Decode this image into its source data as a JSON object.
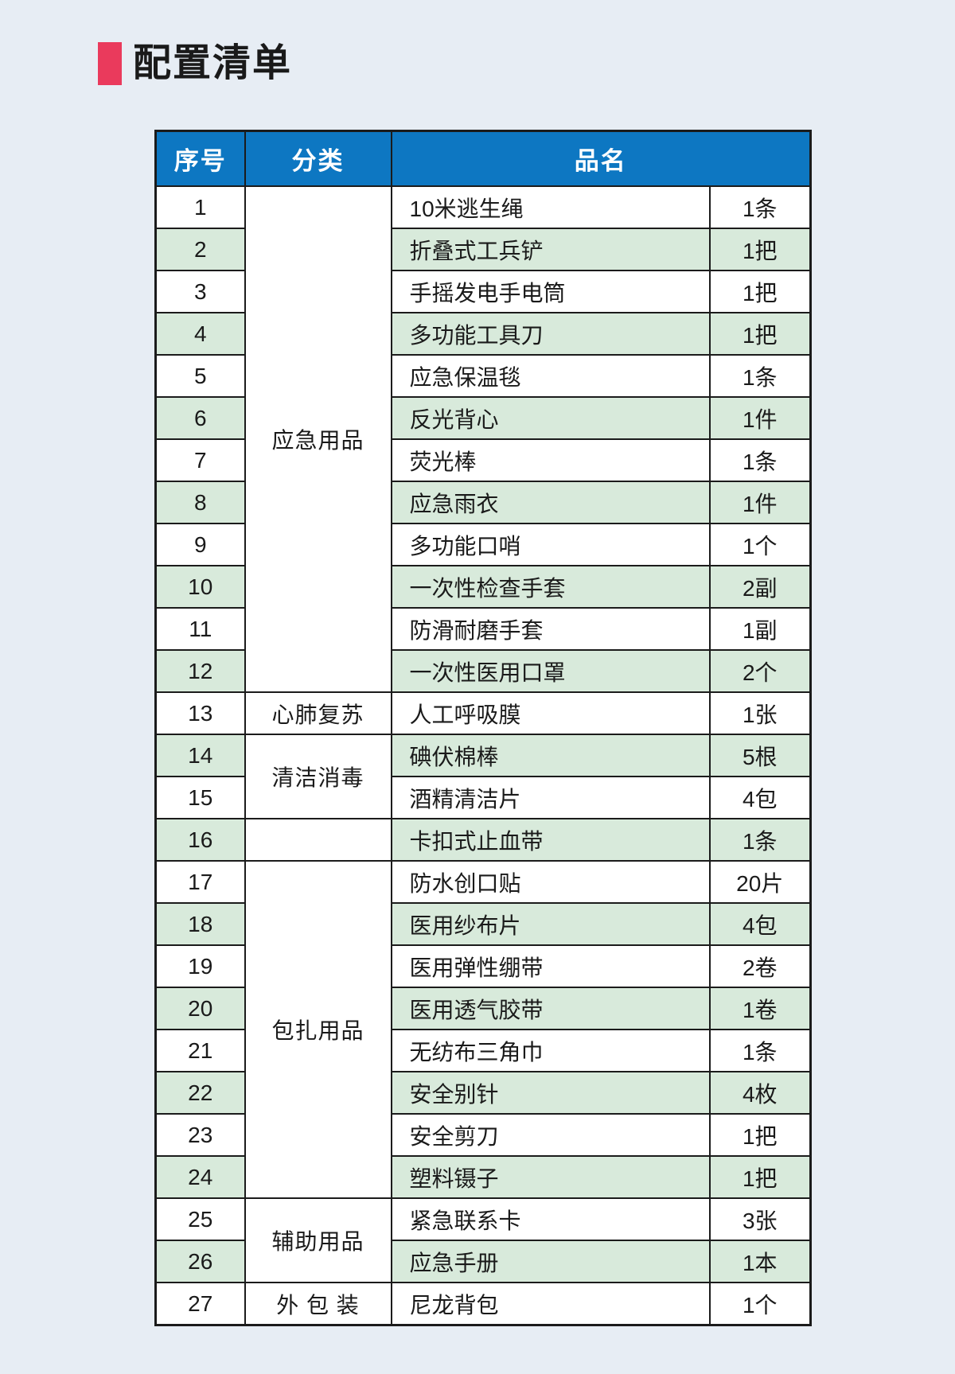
{
  "page": {
    "title": "配置清单"
  },
  "colors": {
    "background": "#e7edf4",
    "title_accent": "#ea3a5c",
    "header_blue": "#0d77c2",
    "row_green": "#d8eadb",
    "row_white": "#ffffff",
    "border": "#1b1b1b"
  },
  "table": {
    "headers": {
      "no": "序号",
      "category": "分类",
      "name": "品名"
    },
    "rows": [
      {
        "no": "1",
        "category": "应急用品",
        "name": "10米逃生绳",
        "qty": "1条"
      },
      {
        "no": "2",
        "name": "折叠式工兵铲",
        "qty": "1把"
      },
      {
        "no": "3",
        "name": "手摇发电手电筒",
        "qty": "1把"
      },
      {
        "no": "4",
        "name": "多功能工具刀",
        "qty": "1把"
      },
      {
        "no": "5",
        "name": "应急保温毯",
        "qty": "1条"
      },
      {
        "no": "6",
        "name": "反光背心",
        "qty": "1件"
      },
      {
        "no": "7",
        "name": "荧光棒",
        "qty": "1条"
      },
      {
        "no": "8",
        "name": "应急雨衣",
        "qty": "1件"
      },
      {
        "no": "9",
        "name": "多功能口哨",
        "qty": "1个"
      },
      {
        "no": "10",
        "name": "一次性检查手套",
        "qty": "2副"
      },
      {
        "no": "11",
        "name": "防滑耐磨手套",
        "qty": "1副"
      },
      {
        "no": "12",
        "name": "一次性医用口罩",
        "qty": "2个"
      },
      {
        "no": "13",
        "category": "心肺复苏",
        "name": "人工呼吸膜",
        "qty": "1张"
      },
      {
        "no": "14",
        "category": "清洁消毒",
        "name": "碘伏棉棒",
        "qty": "5根"
      },
      {
        "no": "15",
        "name": "酒精清洁片",
        "qty": "4包"
      },
      {
        "no": "16",
        "category": "",
        "name": "卡扣式止血带",
        "qty": "1条"
      },
      {
        "no": "17",
        "category": "包扎用品",
        "name": "防水创口贴",
        "qty": "20片"
      },
      {
        "no": "18",
        "name": "医用纱布片",
        "qty": "4包"
      },
      {
        "no": "19",
        "name": "医用弹性绷带",
        "qty": "2卷"
      },
      {
        "no": "20",
        "name": "医用透气胶带",
        "qty": "1卷"
      },
      {
        "no": "21",
        "name": "无纺布三角巾",
        "qty": "1条"
      },
      {
        "no": "22",
        "name": "安全别针",
        "qty": "4枚"
      },
      {
        "no": "23",
        "name": "安全剪刀",
        "qty": "1把"
      },
      {
        "no": "24",
        "name": "塑料镊子",
        "qty": "1把"
      },
      {
        "no": "25",
        "category": "辅助用品",
        "name": "紧急联系卡",
        "qty": "3张"
      },
      {
        "no": "26",
        "name": "应急手册",
        "qty": "1本"
      },
      {
        "no": "27",
        "category": "外 包 装",
        "name": "尼龙背包",
        "qty": "1个"
      }
    ]
  }
}
